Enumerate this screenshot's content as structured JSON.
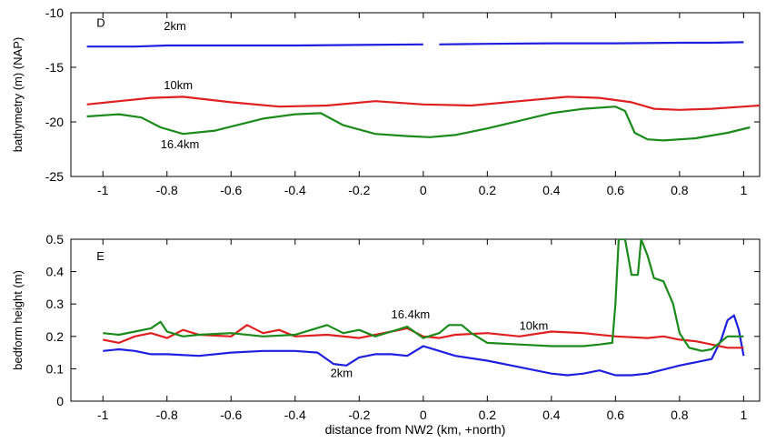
{
  "chart_data": [
    {
      "panel_label": "D",
      "type": "line",
      "xlabel": "",
      "ylabel": "bathymetry (m) (NAP)",
      "xlim": [
        -1.1,
        1.05
      ],
      "ylim": [
        -25,
        -10
      ],
      "xticks": [
        -1,
        -0.8,
        -0.6,
        -0.4,
        -0.2,
        0,
        0.2,
        0.4,
        0.6,
        0.8,
        1
      ],
      "xtick_labels": [
        "-1",
        "-0.8",
        "-0.6",
        "-0.4",
        "-0.2",
        "0",
        "0.2",
        "0.4",
        "0.6",
        "0.8",
        "1"
      ],
      "yticks": [
        -25,
        -20,
        -15,
        -10
      ],
      "ytick_labels": [
        "-25",
        "-20",
        "-15",
        "-10"
      ],
      "grid": false,
      "series": [
        {
          "name": "2km",
          "color": "#1f1fe0",
          "segments": [
            {
              "x": [
                -1.05,
                -0.9,
                -0.8,
                -0.6,
                -0.4,
                -0.2,
                0.0
              ],
              "y": [
                -13.1,
                -13.1,
                -13.0,
                -13.0,
                -13.0,
                -12.95,
                -12.9
              ]
            },
            {
              "x": [
                0.05,
                0.2,
                0.4,
                0.6,
                0.8,
                0.9,
                1.0
              ],
              "y": [
                -12.9,
                -12.85,
                -12.8,
                -12.8,
                -12.75,
                -12.75,
                -12.7
              ]
            }
          ]
        },
        {
          "name": "10km",
          "color": "#e02020",
          "segments": [
            {
              "x": [
                -1.05,
                -0.95,
                -0.85,
                -0.75,
                -0.6,
                -0.45,
                -0.3,
                -0.15,
                0.0,
                0.15,
                0.3,
                0.45,
                0.55,
                0.65,
                0.72,
                0.8,
                0.9,
                1.0,
                1.05
              ],
              "y": [
                -18.4,
                -18.1,
                -17.8,
                -17.7,
                -18.2,
                -18.6,
                -18.5,
                -18.1,
                -18.4,
                -18.5,
                -18.1,
                -17.7,
                -17.8,
                -18.2,
                -18.8,
                -18.9,
                -18.8,
                -18.6,
                -18.5
              ]
            }
          ]
        },
        {
          "name": "16.4km",
          "color": "#1a8a1a",
          "segments": [
            {
              "x": [
                -1.05,
                -0.95,
                -0.88,
                -0.82,
                -0.75,
                -0.65,
                -0.5,
                -0.4,
                -0.32,
                -0.25,
                -0.15,
                -0.05,
                0.02,
                0.1,
                0.2,
                0.3,
                0.4,
                0.5,
                0.6,
                0.63,
                0.66,
                0.7,
                0.75,
                0.85,
                0.95,
                1.02
              ],
              "y": [
                -19.5,
                -19.3,
                -19.6,
                -20.5,
                -21.1,
                -20.8,
                -19.7,
                -19.3,
                -19.2,
                -20.3,
                -21.1,
                -21.3,
                -21.4,
                -21.2,
                -20.6,
                -19.9,
                -19.2,
                -18.8,
                -18.6,
                -19.0,
                -21.0,
                -21.6,
                -21.7,
                -21.5,
                -21.0,
                -20.5
              ]
            }
          ]
        }
      ],
      "annotations": [
        {
          "text": "D",
          "x": -1.02,
          "y": -11.3
        },
        {
          "text": "2km",
          "x": -0.81,
          "y": -11.6
        },
        {
          "text": "10km",
          "x": -0.81,
          "y": -17.0
        },
        {
          "text": "16.4km",
          "x": -0.82,
          "y": -22.4
        }
      ]
    },
    {
      "panel_label": "E",
      "type": "line",
      "xlabel": "distance from NW2 (km, +north)",
      "ylabel": "bedform height (m)",
      "xlim": [
        -1.1,
        1.05
      ],
      "ylim": [
        0,
        0.5
      ],
      "xticks": [
        -1,
        -0.8,
        -0.6,
        -0.4,
        -0.2,
        0,
        0.2,
        0.4,
        0.6,
        0.8,
        1
      ],
      "xtick_labels": [
        "-1",
        "-0.8",
        "-0.6",
        "-0.4",
        "-0.2",
        "0",
        "0.2",
        "0.4",
        "0.6",
        "0.8",
        "1"
      ],
      "yticks": [
        0,
        0.1,
        0.2,
        0.3,
        0.4,
        0.5
      ],
      "ytick_labels": [
        "0",
        "0.1",
        "0.2",
        "0.3",
        "0.4",
        "0.5"
      ],
      "grid": false,
      "series": [
        {
          "name": "2km",
          "color": "#1f1fe0",
          "segments": [
            {
              "x": [
                -1.0,
                -0.95,
                -0.9,
                -0.85,
                -0.8,
                -0.7,
                -0.6,
                -0.5,
                -0.4,
                -0.33,
                -0.28,
                -0.24,
                -0.2,
                -0.15,
                -0.1,
                -0.05,
                0.0,
                0.05,
                0.1,
                0.2,
                0.3,
                0.4,
                0.45,
                0.5,
                0.55,
                0.6,
                0.65,
                0.7,
                0.8,
                0.85,
                0.9,
                0.93,
                0.95,
                0.97,
                0.985,
                1.0
              ],
              "y": [
                0.155,
                0.16,
                0.155,
                0.145,
                0.145,
                0.14,
                0.15,
                0.155,
                0.155,
                0.15,
                0.115,
                0.11,
                0.135,
                0.145,
                0.145,
                0.14,
                0.17,
                0.155,
                0.14,
                0.125,
                0.105,
                0.085,
                0.08,
                0.085,
                0.095,
                0.08,
                0.08,
                0.085,
                0.11,
                0.12,
                0.13,
                0.19,
                0.25,
                0.265,
                0.22,
                0.14
              ]
            }
          ]
        },
        {
          "name": "10km",
          "color": "#e02020",
          "segments": [
            {
              "x": [
                -1.0,
                -0.95,
                -0.9,
                -0.85,
                -0.8,
                -0.75,
                -0.7,
                -0.6,
                -0.55,
                -0.5,
                -0.45,
                -0.4,
                -0.3,
                -0.2,
                -0.1,
                -0.05,
                0.0,
                0.05,
                0.1,
                0.2,
                0.3,
                0.4,
                0.5,
                0.6,
                0.7,
                0.75,
                0.8,
                0.85,
                0.9,
                0.95,
                1.0
              ],
              "y": [
                0.19,
                0.18,
                0.2,
                0.21,
                0.195,
                0.22,
                0.205,
                0.2,
                0.235,
                0.21,
                0.22,
                0.2,
                0.205,
                0.195,
                0.215,
                0.225,
                0.2,
                0.195,
                0.205,
                0.21,
                0.2,
                0.215,
                0.21,
                0.2,
                0.195,
                0.2,
                0.19,
                0.185,
                0.175,
                0.165,
                0.165
              ]
            }
          ]
        },
        {
          "name": "16.4km",
          "color": "#1a8a1a",
          "segments": [
            {
              "x": [
                -1.0,
                -0.95,
                -0.9,
                -0.85,
                -0.82,
                -0.8,
                -0.75,
                -0.7,
                -0.6,
                -0.5,
                -0.4,
                -0.35,
                -0.3,
                -0.25,
                -0.2,
                -0.15,
                -0.1,
                -0.05,
                0.0,
                0.05,
                0.08,
                0.12,
                0.15,
                0.2,
                0.3,
                0.4,
                0.5,
                0.55,
                0.59,
                0.6,
                0.61,
                0.63,
                0.65,
                0.67,
                0.68,
                0.7,
                0.72,
                0.75,
                0.78,
                0.8,
                0.83,
                0.87,
                0.9,
                0.95,
                1.0
              ],
              "y": [
                0.21,
                0.205,
                0.215,
                0.225,
                0.245,
                0.215,
                0.2,
                0.205,
                0.21,
                0.2,
                0.205,
                0.22,
                0.235,
                0.21,
                0.22,
                0.2,
                0.215,
                0.23,
                0.195,
                0.21,
                0.235,
                0.235,
                0.21,
                0.18,
                0.175,
                0.17,
                0.17,
                0.175,
                0.18,
                0.3,
                0.5,
                0.5,
                0.39,
                0.39,
                0.5,
                0.45,
                0.38,
                0.37,
                0.3,
                0.21,
                0.165,
                0.155,
                0.16,
                0.2,
                0.2
              ]
            }
          ]
        }
      ],
      "annotations": [
        {
          "text": "E",
          "x": -1.02,
          "y": 0.435
        },
        {
          "text": "16.4km",
          "x": -0.1,
          "y": 0.255
        },
        {
          "text": "10km",
          "x": 0.3,
          "y": 0.22
        },
        {
          "text": "2km",
          "x": -0.29,
          "y": 0.075
        }
      ]
    }
  ]
}
